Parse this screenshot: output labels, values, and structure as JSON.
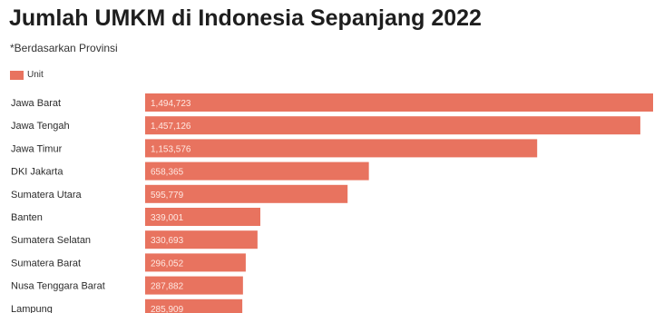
{
  "chart_data": {
    "type": "bar",
    "orientation": "horizontal",
    "title": "Jumlah UMKM di Indonesia Sepanjang 2022",
    "subtitle": "*Berdasarkan Provinsi",
    "legend": [
      "Unit"
    ],
    "legend_placement": "top-left",
    "grid": false,
    "color": "#e8735f",
    "categories": [
      "Jawa Barat",
      "Jawa Tengah",
      "Jawa Timur",
      "DKI Jakarta",
      "Sumatera Utara",
      "Banten",
      "Sumatera Selatan",
      "Sumatera Barat",
      "Nusa Tenggara Barat",
      "Lampung"
    ],
    "values": [
      1494723,
      1457126,
      1153576,
      658365,
      595779,
      339001,
      330693,
      296052,
      287882,
      285909
    ],
    "value_labels": [
      "1,494,723",
      "1,457,126",
      "1,153,576",
      "658,365",
      "595,779",
      "339,001",
      "330,693",
      "296,052",
      "287,882",
      "285,909"
    ],
    "series": [
      {
        "name": "Unit",
        "values": [
          1494723,
          1457126,
          1153576,
          658365,
          595779,
          339001,
          330693,
          296052,
          287882,
          285909
        ]
      }
    ]
  }
}
